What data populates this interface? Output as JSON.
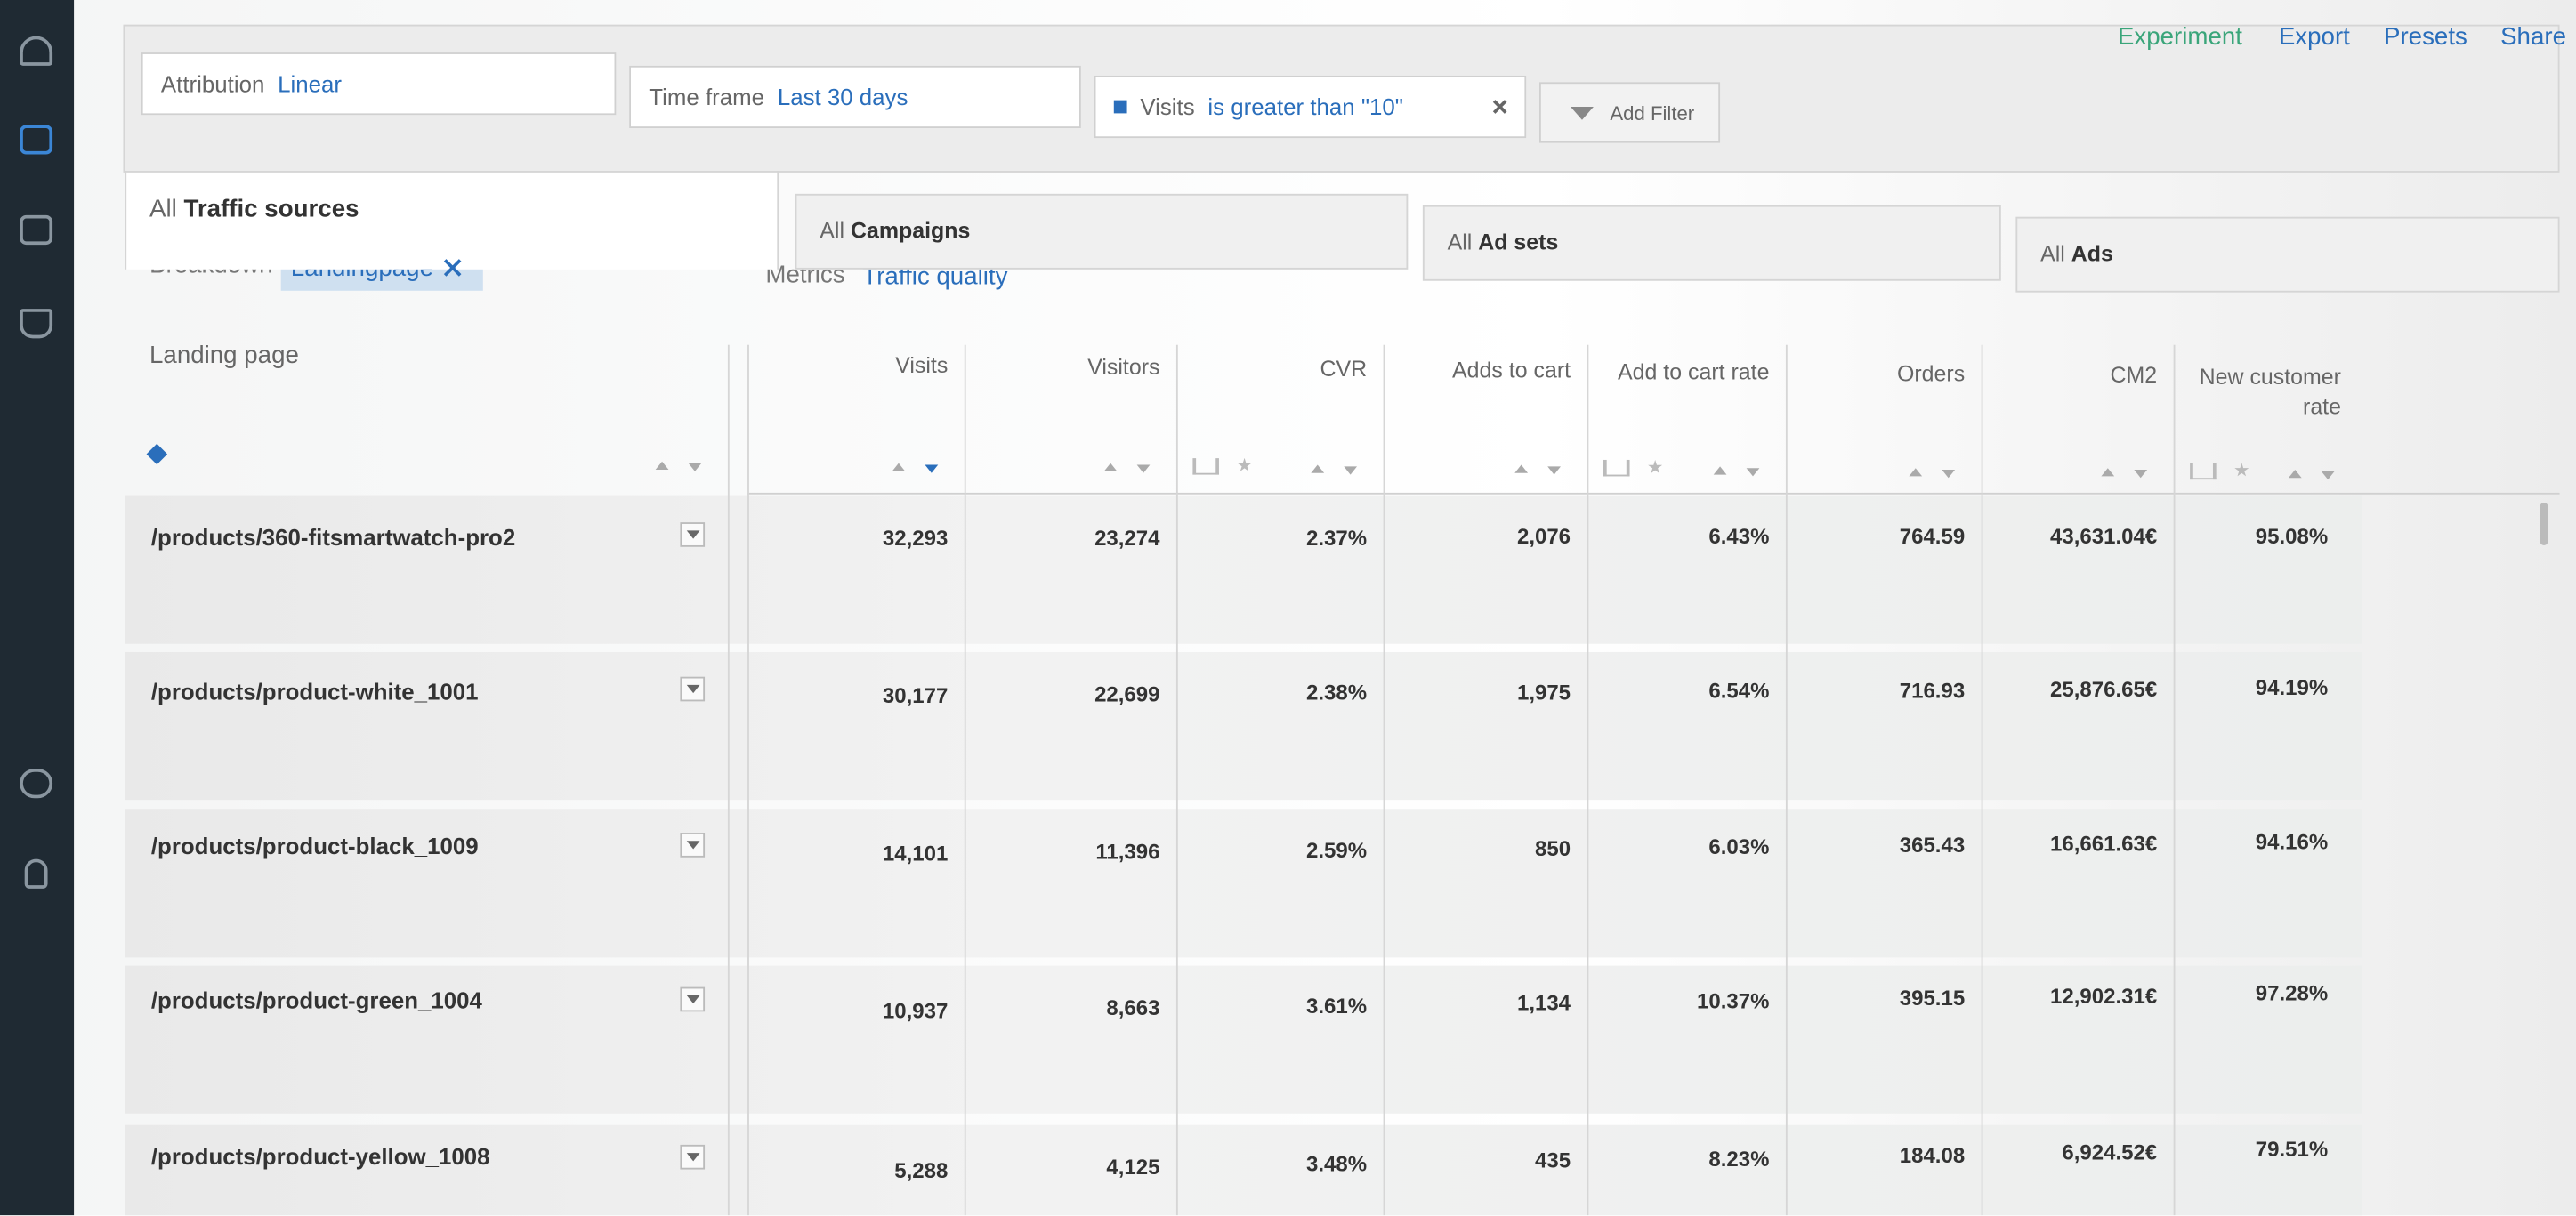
{
  "top_actions": [
    "Experiment",
    "Export",
    "Presets",
    "Share"
  ],
  "filters": {
    "attribution": {
      "label": "Attribution",
      "value": "Linear"
    },
    "time_frame": {
      "label": "Time frame",
      "value": "Last 30 days"
    },
    "visits": {
      "label": "Visits",
      "value": "is greater than \"10\""
    },
    "add_filter": "Add Filter"
  },
  "tabs": [
    {
      "prefix": "All",
      "name": "Traffic sources"
    },
    {
      "prefix": "All",
      "name": "Campaigns"
    },
    {
      "prefix": "All",
      "name": "Ad sets"
    },
    {
      "prefix": "All",
      "name": "Ads"
    }
  ],
  "breakdown": {
    "label": "Breakdown",
    "value": "Landingpage"
  },
  "metrics": {
    "label": "Metrics",
    "value": "Traffic quality"
  },
  "table": {
    "columns": [
      "Landing page",
      "Visits",
      "Visitors",
      "CVR",
      "Adds to cart",
      "Add to cart rate",
      "Orders",
      "CM2",
      "New customer rate"
    ],
    "rows": [
      [
        "/products/360-fitsmartwatch-pro2",
        "32,293",
        "23,274",
        "2.37%",
        "2,076",
        "6.43%",
        "764.59",
        "43,631.04€",
        "95.08%"
      ],
      [
        "/products/product-white_1001",
        "30,177",
        "22,699",
        "2.38%",
        "1,975",
        "6.54%",
        "716.93",
        "25,876.65€",
        "94.19%"
      ],
      [
        "/products/product-black_1009",
        "14,101",
        "11,396",
        "2.59%",
        "850",
        "6.03%",
        "365.43",
        "16,661.63€",
        "94.16%"
      ],
      [
        "/products/product-green_1004",
        "10,937",
        "8,663",
        "3.61%",
        "1,134",
        "10.37%",
        "395.15",
        "12,902.31€",
        "97.28%"
      ],
      [
        "/products/product-yellow_1008",
        "5,288",
        "4,125",
        "3.48%",
        "435",
        "8.23%",
        "184.08",
        "6,924.52€",
        "79.51%"
      ]
    ]
  }
}
